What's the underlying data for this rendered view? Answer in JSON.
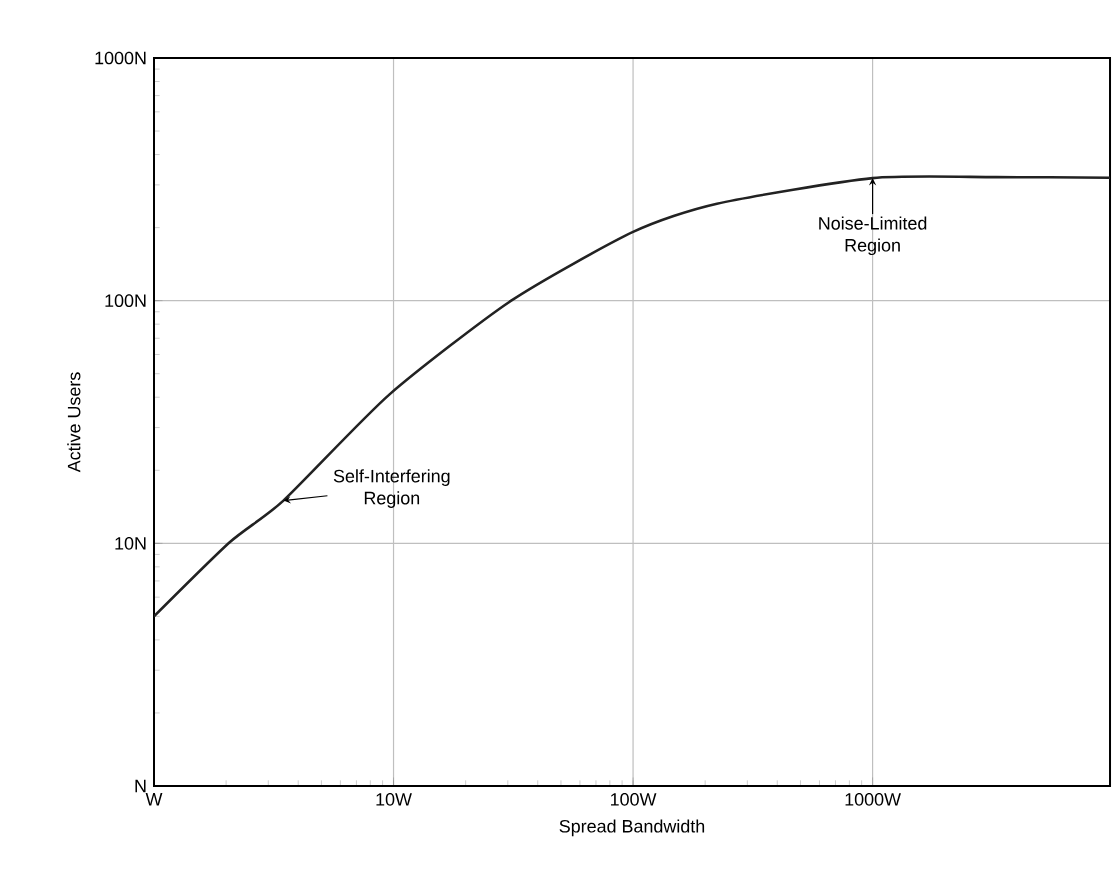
{
  "chart_data": {
    "type": "line",
    "xlabel": "Spread Bandwidth",
    "ylabel": "Active Users",
    "x": [
      1,
      2.07,
      3.47,
      9.6,
      31,
      100,
      224,
      1000,
      3280,
      9800
    ],
    "series": [
      {
        "color": "#222222",
        "values": [
          5.0,
          10.1,
          15,
          41,
          100,
          192,
          251,
          320,
          323,
          321
        ]
      }
    ],
    "log": "xy",
    "grid": true,
    "marker": "none",
    "line_style": "solid",
    "xlim": [
      1,
      9800
    ],
    "ylim": [
      1,
      1000
    ],
    "xticks": [
      {
        "value": 1,
        "label": "W"
      },
      {
        "value": 10,
        "label": "10W"
      },
      {
        "value": 100,
        "label": "100W"
      },
      {
        "value": 1000,
        "label": "1000W"
      }
    ],
    "yticks": [
      {
        "value": 1,
        "label": "N"
      },
      {
        "value": 10,
        "label": "10N"
      },
      {
        "value": 100,
        "label": "100N"
      },
      {
        "value": 1000,
        "label": "1000N"
      }
    ],
    "annotations": [
      {
        "text": "Self-Interfering Region",
        "x": 3.47,
        "y": 15
      },
      {
        "text": "Noise-Limited Region",
        "x": 1000,
        "y": 320
      }
    ]
  }
}
